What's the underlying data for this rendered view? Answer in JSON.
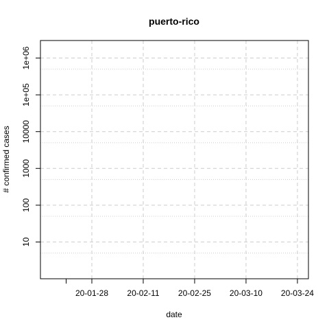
{
  "chart_data": {
    "type": "line",
    "title": "puerto-rico",
    "xlabel": "date",
    "ylabel": "# confirmed cases",
    "x_axis_type": "date",
    "x_range": [
      "2020-01-14",
      "2020-03-27"
    ],
    "x_ticks": [
      {
        "date": "2020-01-21",
        "label": ""
      },
      {
        "date": "2020-01-28",
        "label": "20-01-28"
      },
      {
        "date": "2020-02-11",
        "label": "20-02-11"
      },
      {
        "date": "2020-02-25",
        "label": "20-02-25"
      },
      {
        "date": "2020-03-10",
        "label": "20-03-10"
      },
      {
        "date": "2020-03-24",
        "label": "20-03-24"
      }
    ],
    "x_major_grid_dates": [
      "2020-01-28",
      "2020-02-11",
      "2020-02-25",
      "2020-03-10",
      "2020-03-24"
    ],
    "y_scale": "log10",
    "y_range": [
      1,
      3000000
    ],
    "y_ticks": [
      {
        "value": 10,
        "label": "10"
      },
      {
        "value": 100,
        "label": "100"
      },
      {
        "value": 1000,
        "label": "1000"
      },
      {
        "value": 10000,
        "label": "10000"
      },
      {
        "value": 100000,
        "label": "1e+05"
      },
      {
        "value": 1000000,
        "label": "1e+06"
      }
    ],
    "y_minor_grid_values": [
      5,
      50,
      500,
      5000,
      50000,
      500000
    ],
    "grid": true,
    "series": []
  }
}
